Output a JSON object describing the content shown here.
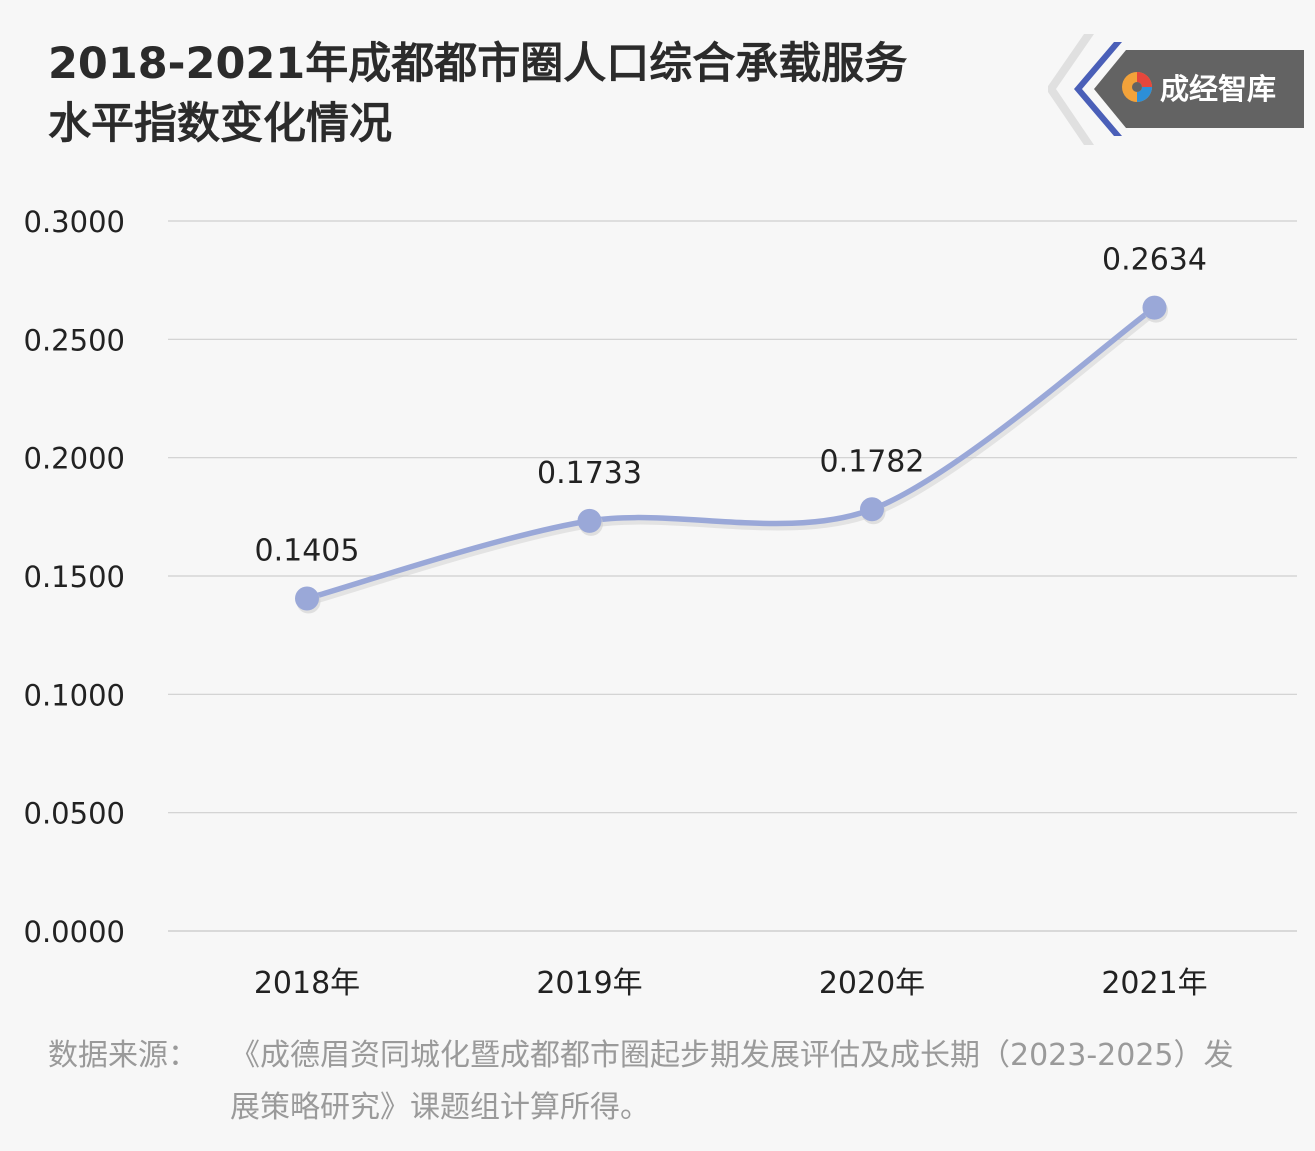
{
  "title": {
    "line1": "2018-2021年成都都市圈人口综合承载服务",
    "line2": "水平指数变化情况"
  },
  "logo": {
    "text": "成经智库",
    "icon": "brand-swirl-icon"
  },
  "source": {
    "label": "数据来源：",
    "text": "《成德眉资同城化暨成都都市圈起步期发展评估及成长期（2023-2025）发展策略研究》课题组计算所得。"
  },
  "colors": {
    "line": "#9aa8d8",
    "grid": "#cfcfcf",
    "text": "#222222",
    "title": "#2b2b2b",
    "source": "#9a9a9a",
    "logo_bg": "#636363",
    "logo_accent": "#4a5fb8"
  },
  "chart_data": {
    "type": "line",
    "categories": [
      "2018年",
      "2019年",
      "2020年",
      "2021年"
    ],
    "series": [
      {
        "values": [
          0.1405,
          0.1733,
          0.1782,
          0.2634
        ]
      }
    ],
    "data_labels": [
      "0.1405",
      "0.1733",
      "0.1782",
      "0.2634"
    ],
    "y_ticks": [
      "0.0000",
      "0.0500",
      "0.1000",
      "0.1500",
      "0.2000",
      "0.2500",
      "0.3000"
    ],
    "ylim": [
      0,
      0.3
    ],
    "smooth": true,
    "grid": true,
    "xlabel": "",
    "ylabel": ""
  }
}
